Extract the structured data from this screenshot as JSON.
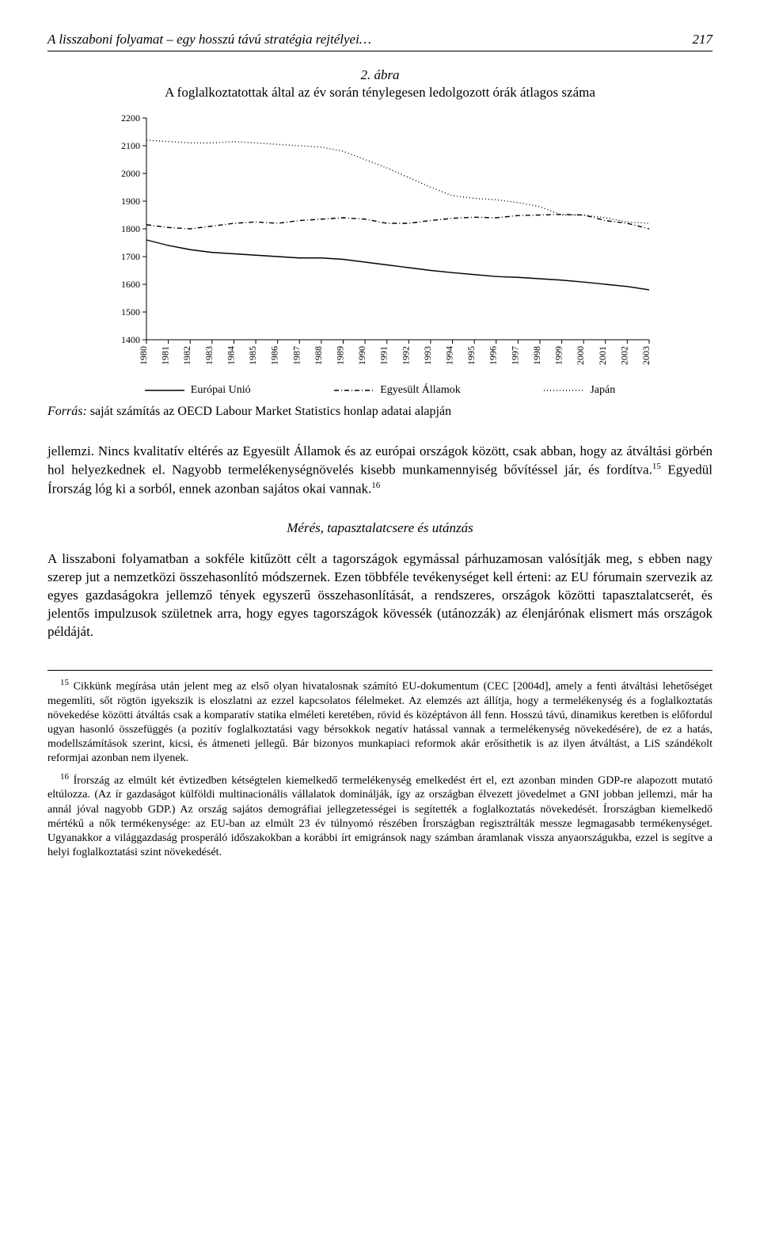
{
  "header": {
    "running_title": "A lisszaboni folyamat – egy hosszú távú stratégia rejtélyei…",
    "page_number": "217"
  },
  "figure": {
    "label": "2. ábra",
    "title": "A foglalkoztatottak által az év során ténylegesen ledolgozott órák átlagos száma",
    "chart": {
      "type": "line",
      "years": [
        1980,
        1981,
        1982,
        1983,
        1984,
        1985,
        1986,
        1987,
        1988,
        1989,
        1990,
        1991,
        1992,
        1993,
        1994,
        1995,
        1996,
        1997,
        1998,
        1999,
        2000,
        2001,
        2002,
        2003
      ],
      "ylim": [
        1400,
        2200
      ],
      "ytick_step": 100,
      "series": [
        {
          "name": "Európai Unió",
          "style": "solid",
          "color": "#000000",
          "values": [
            1760,
            1740,
            1725,
            1715,
            1710,
            1705,
            1700,
            1695,
            1695,
            1690,
            1680,
            1670,
            1660,
            1650,
            1642,
            1635,
            1628,
            1625,
            1620,
            1615,
            1608,
            1600,
            1592,
            1580
          ]
        },
        {
          "name": "Egyesült Államok",
          "style": "dashdot",
          "color": "#000000",
          "values": [
            1815,
            1805,
            1800,
            1810,
            1820,
            1825,
            1820,
            1830,
            1835,
            1840,
            1835,
            1820,
            1820,
            1830,
            1838,
            1842,
            1840,
            1848,
            1850,
            1852,
            1850,
            1830,
            1820,
            1800
          ]
        },
        {
          "name": "Japán",
          "style": "dotted",
          "color": "#000000",
          "values": [
            2120,
            2115,
            2110,
            2110,
            2115,
            2110,
            2105,
            2100,
            2095,
            2080,
            2050,
            2020,
            1985,
            1950,
            1920,
            1910,
            1905,
            1895,
            1880,
            1850,
            1850,
            1840,
            1825,
            1820
          ]
        }
      ],
      "background_color": "#ffffff",
      "axis_fontsize": 12,
      "line_width": 1.4
    },
    "source_label": "Forrás:",
    "source_text": " saját számítás az OECD Labour Market Statistics honlap adatai alapján"
  },
  "paragraphs": {
    "p1": "jellemzi. Nincs kvalitatív eltérés az Egyesült Államok és az európai országok között, csak abban, hogy az átváltási görbén hol helyezkednek el. Nagyobb termelékenységnövelés kisebb munkamennyiség bővítéssel jár, és fordítva.",
    "p1_after_sup": " Egyedül Írország lóg ki a sorból, ennek azonban sajátos okai vannak.",
    "section_title": "Mérés, tapasztalatcsere és utánzás",
    "p2": "A lisszaboni folyamatban a sokféle kitűzött célt a tagországok egymással párhuzamosan valósítják meg, s ebben nagy szerep jut a nemzetközi összehasonlító módszernek. Ezen többféle tevékenységet kell érteni: az EU fórumain szervezik az egyes gazdaságokra jellemző tények egyszerű összehasonlítását, a rendszeres, országok közötti tapasztalatcserét, és jelentős impulzusok születnek arra, hogy egyes tagországok kövessék (utánozzák) az élenjárónak elismert más országok példáját."
  },
  "footnotes": {
    "fn15_num": "15",
    "fn15": "Cikkünk megírása után jelent meg az első olyan hivatalosnak számító EU-dokumentum (CEC [2004d], amely a fenti átváltási lehetőséget megemlíti, sőt rögtön igyekszik is eloszlatni az ezzel kapcsolatos félelmeket. Az elemzés azt állítja, hogy a termelékenység és a foglalkoztatás növekedése közötti átváltás csak a komparatív statika elméleti keretében, rövid és középtávon áll fenn. Hosszú távú, dinamikus keretben is előfordul ugyan hasonló összefüggés (a pozitív foglalkoztatási vagy bérsokkok negatív hatással vannak a termelékenység növekedésére), de ez a hatás, modellszámítások szerint, kicsi, és átmeneti jellegű. Bár bizonyos munkapiaci reformok akár erősíthetik is az ilyen átváltást, a LiS szándékolt reformjai azonban nem ilyenek.",
    "fn16_num": "16",
    "fn16": "Írország az elmúlt két évtizedben kétségtelen kiemelkedő termelékenység emelkedést ért el, ezt azonban minden GDP-re alapozott mutató eltúlozza. (Az ír gazdaságot külföldi multinacionális vállalatok dominálják, így az országban élvezett jövedelmet a GNI jobban jellemzi, már ha annál jóval nagyobb GDP.) Az ország sajátos demográfiai jellegzetességei is segítették a foglalkoztatás növekedését. Írországban kiemelkedő mértékű a nők termékenysége: az EU-ban az elmúlt 23 év túlnyomó részében Írországban regisztrálták messze legmagasabb termékenységet. Ugyanakkor a világgazdaság prosperáló időszakokban a korábbi írt emigránsok nagy számban áramlanak vissza anyaországukba, ezzel is segítve a helyi foglalkoztatási szint növekedését."
  }
}
